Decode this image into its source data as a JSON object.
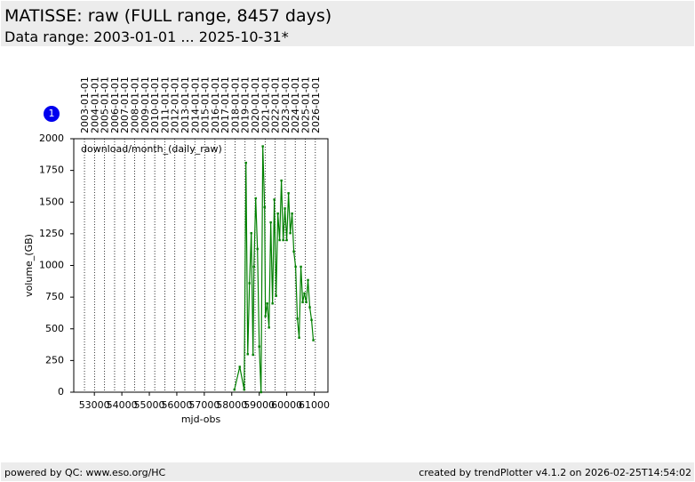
{
  "header": {
    "title": "MATISSE: raw (FULL range, 8457 days)",
    "subtitle": "Data range: 2003-01-01 ... 2025-10-31*"
  },
  "footer": {
    "left": "powered by QC: www.eso.org/HC",
    "right": "created by trendPlotter v4.1.2 on 2026-02-25T14:54:02"
  },
  "chart_data": {
    "type": "line",
    "panel_label": "1",
    "annotation": "download/month_(daily_raw)",
    "x_label": "mjd-obs",
    "y_label": "volume_(GB)",
    "xlim": [
      52250,
      61500
    ],
    "ylim": [
      0,
      2000
    ],
    "xticks": [
      53000,
      54000,
      55000,
      56000,
      57000,
      58000,
      59000,
      60000,
      61000
    ],
    "yticks": [
      0,
      250,
      500,
      750,
      1000,
      1250,
      1500,
      1750,
      2000
    ],
    "x2ticks": [
      {
        "value": 52640,
        "label": "2003-01-01"
      },
      {
        "value": 53005,
        "label": "2004-01-01"
      },
      {
        "value": 53371,
        "label": "2005-01-01"
      },
      {
        "value": 53736,
        "label": "2006-01-01"
      },
      {
        "value": 54101,
        "label": "2007-01-01"
      },
      {
        "value": 54466,
        "label": "2008-01-01"
      },
      {
        "value": 54832,
        "label": "2009-01-01"
      },
      {
        "value": 55197,
        "label": "2010-01-01"
      },
      {
        "value": 55562,
        "label": "2011-01-01"
      },
      {
        "value": 55927,
        "label": "2012-01-01"
      },
      {
        "value": 56293,
        "label": "2013-01-01"
      },
      {
        "value": 56658,
        "label": "2014-01-01"
      },
      {
        "value": 57023,
        "label": "2015-01-01"
      },
      {
        "value": 57388,
        "label": "2016-01-01"
      },
      {
        "value": 57754,
        "label": "2017-01-01"
      },
      {
        "value": 58119,
        "label": "2018-01-01"
      },
      {
        "value": 58484,
        "label": "2019-01-01"
      },
      {
        "value": 58849,
        "label": "2020-01-01"
      },
      {
        "value": 59215,
        "label": "2021-01-01"
      },
      {
        "value": 59580,
        "label": "2022-01-01"
      },
      {
        "value": 59945,
        "label": "2023-01-01"
      },
      {
        "value": 60310,
        "label": "2024-01-01"
      },
      {
        "value": 60676,
        "label": "2025-01-01"
      },
      {
        "value": 61041,
        "label": "2026-01-01"
      }
    ],
    "grid": true,
    "color": "#008000",
    "x": [
      58097,
      58290,
      58452,
      58516,
      58581,
      58645,
      58710,
      58774,
      58806,
      58871,
      58935,
      59000,
      59065,
      59129,
      59194,
      59226,
      59290,
      59355,
      59419,
      59484,
      59548,
      59613,
      59677,
      59742,
      59806,
      59871,
      59935,
      60000,
      60065,
      60129,
      60194,
      60258,
      60323,
      60387,
      60452,
      60516,
      60581,
      60645,
      60710,
      60774,
      60839,
      60903,
      60968
    ],
    "values": [
      20,
      200,
      20,
      1810,
      300,
      860,
      1255,
      295,
      990,
      1530,
      1130,
      360,
      0,
      1940,
      1460,
      600,
      700,
      510,
      1340,
      700,
      1520,
      760,
      1410,
      1200,
      1670,
      1200,
      1450,
      1200,
      1570,
      1255,
      1410,
      1110,
      990,
      580,
      430,
      990,
      710,
      780,
      710,
      885,
      670,
      570,
      410
    ]
  }
}
